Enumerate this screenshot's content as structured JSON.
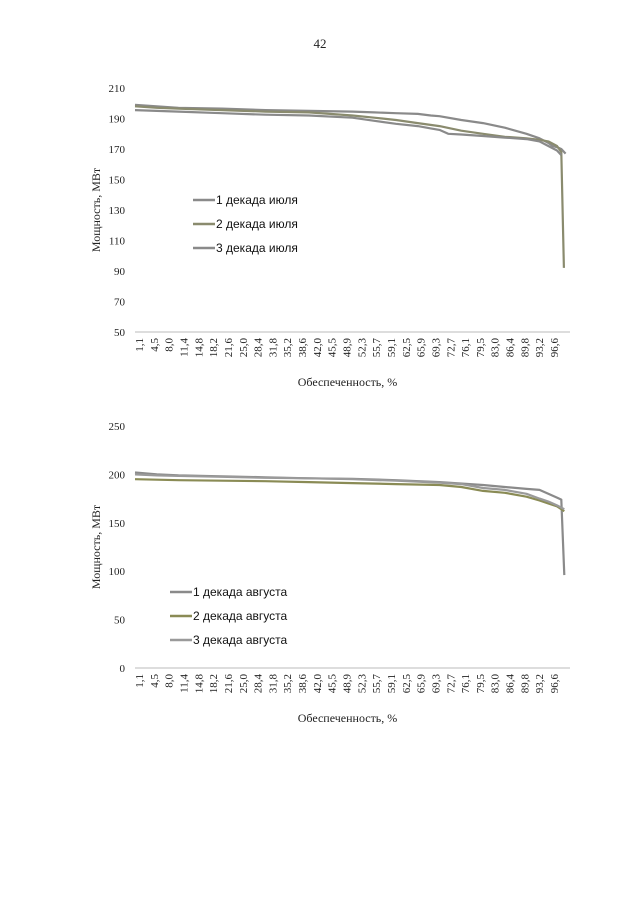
{
  "page": {
    "number": "42"
  },
  "chart_data": [
    {
      "type": "line",
      "id": "july",
      "xlabel": "Обеспеченность, %",
      "ylabel": "Мощность, МВт",
      "ylim": [
        50,
        210
      ],
      "yticks": [
        50,
        70,
        90,
        110,
        130,
        150,
        170,
        190,
        210
      ],
      "x_tick_labels": [
        "1,1",
        "4,5",
        "8,0",
        "11,4",
        "14,8",
        "18,2",
        "21,6",
        "25,0",
        "28,4",
        "31,8",
        "35,2",
        "38,6",
        "42,0",
        "45,5",
        "48,9",
        "52,3",
        "55,7",
        "59,1",
        "62,5",
        "65,9",
        "69,3",
        "72,7",
        "76,1",
        "79,5",
        "83,0",
        "86,4",
        "89,8",
        "93,2",
        "96,6"
      ],
      "x_range": [
        0,
        100
      ],
      "grid": false,
      "legend_position": "left-middle",
      "series": [
        {
          "name": "1 декада июля",
          "color": "#8a8a8a",
          "x": [
            0,
            5,
            10,
            20,
            30,
            40,
            50,
            55,
            60,
            65,
            68,
            70,
            75,
            80,
            85,
            90,
            93,
            95,
            96,
            97.2,
            98,
            99
          ],
          "y": [
            199,
            198,
            197,
            196.5,
            195.5,
            195,
            194.5,
            194,
            193.5,
            193,
            192,
            191.5,
            189,
            187,
            184,
            180,
            177,
            174,
            172,
            171,
            170,
            167
          ]
        },
        {
          "name": "2 декада июля",
          "color": "#8a8b6e",
          "x": [
            0,
            5,
            10,
            20,
            30,
            40,
            50,
            55,
            60,
            65,
            70,
            75,
            80,
            85,
            90,
            93,
            95,
            97,
            98,
            98.6
          ],
          "y": [
            198,
            197,
            196.5,
            195.5,
            194.5,
            194,
            192,
            190.5,
            189,
            187,
            185,
            182,
            180,
            178,
            177,
            176,
            175,
            172,
            168,
            92
          ]
        },
        {
          "name": "3 декада июля",
          "color": "#8a8a8a",
          "x": [
            0,
            5,
            10,
            20,
            30,
            40,
            50,
            55,
            60,
            65,
            68,
            70,
            72,
            75,
            80,
            85,
            90,
            93,
            95,
            97,
            98
          ],
          "y": [
            195.5,
            195,
            194.5,
            193.5,
            192.5,
            192,
            190.5,
            188.5,
            186.5,
            185,
            183.5,
            182.5,
            180,
            179.5,
            178.5,
            177.5,
            176.5,
            175,
            172,
            169,
            166
          ]
        }
      ]
    },
    {
      "type": "line",
      "id": "august",
      "xlabel": "Обеспеченность, %",
      "ylabel": "Мощность, МВт",
      "ylim": [
        0,
        250
      ],
      "yticks": [
        0,
        50,
        100,
        150,
        200,
        250
      ],
      "x_tick_labels": [
        "1,1",
        "4,5",
        "8,0",
        "11,4",
        "14,8",
        "18,2",
        "21,6",
        "25,0",
        "28,4",
        "31,8",
        "35,2",
        "38,6",
        "42,0",
        "45,5",
        "48,9",
        "52,3",
        "55,7",
        "59,1",
        "62,5",
        "65,9",
        "69,3",
        "72,7",
        "76,1",
        "79,5",
        "83,0",
        "86,4",
        "89,8",
        "93,2",
        "96,6"
      ],
      "x_range": [
        0,
        100
      ],
      "grid": false,
      "legend_position": "left-lower",
      "series": [
        {
          "name": "1 декада августа",
          "color": "#8a8a8a",
          "x": [
            0,
            5,
            10,
            20,
            30,
            40,
            50,
            60,
            70,
            80,
            85,
            90,
            93,
            95,
            97,
            98,
            98.7
          ],
          "y": [
            202,
            200,
            199,
            198,
            197,
            196,
            195.5,
            194,
            192,
            189,
            187,
            185,
            184,
            180,
            176,
            174,
            96
          ]
        },
        {
          "name": "2 декада августа",
          "color": "#8a8b55",
          "x": [
            0,
            5,
            10,
            20,
            30,
            40,
            50,
            60,
            70,
            75,
            80,
            85,
            90,
            93,
            95,
            97,
            98.7
          ],
          "y": [
            195,
            194.5,
            194,
            193.5,
            193,
            192,
            191,
            190,
            189,
            187,
            183,
            181,
            177,
            173,
            170,
            167,
            162
          ]
        },
        {
          "name": "3 декада августа",
          "color": "#9a9a9a",
          "x": [
            0,
            5,
            10,
            20,
            30,
            40,
            50,
            60,
            70,
            75,
            80,
            85,
            90,
            93,
            95,
            97,
            98.7
          ],
          "y": [
            200,
            199,
            198.5,
            197.5,
            196.5,
            196,
            195,
            193.5,
            191.5,
            190,
            186,
            184,
            180,
            175,
            172,
            168,
            164
          ]
        }
      ]
    }
  ]
}
